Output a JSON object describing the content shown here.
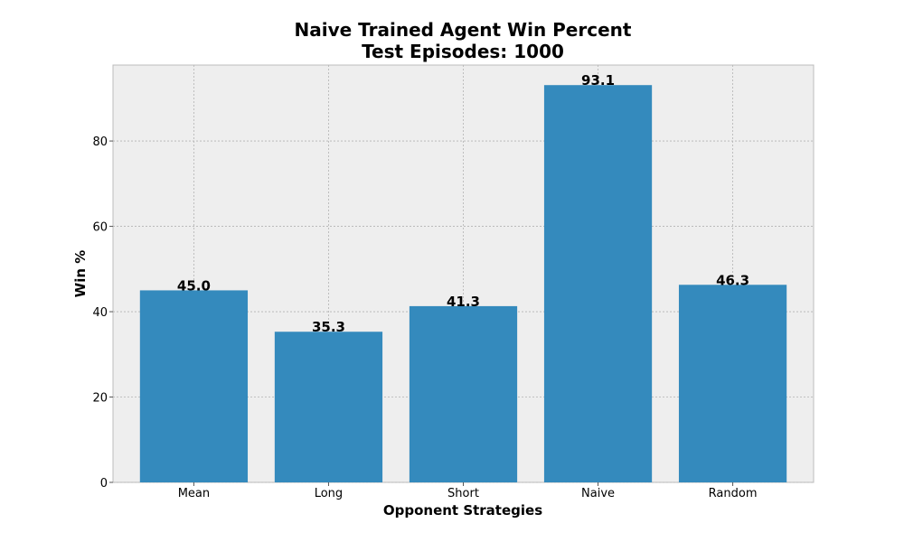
{
  "chart_data": {
    "type": "bar",
    "title": "Naive Trained Agent Win Percent",
    "subtitle": "Test Episodes: 1000",
    "xlabel": "Opponent Strategies",
    "ylabel": "Win %",
    "categories": [
      "Mean",
      "Long",
      "Short",
      "Naive",
      "Random"
    ],
    "values": [
      45.0,
      35.3,
      41.3,
      93.1,
      46.3
    ],
    "data_labels": [
      "45.0",
      "35.3",
      "41.3",
      "93.1",
      "46.3"
    ],
    "ylim": [
      0,
      97.8
    ],
    "yticks": [
      0,
      20,
      40,
      60,
      80
    ],
    "grid": true,
    "bar_color": "#348abd",
    "plot_background": "#eeeeee"
  }
}
